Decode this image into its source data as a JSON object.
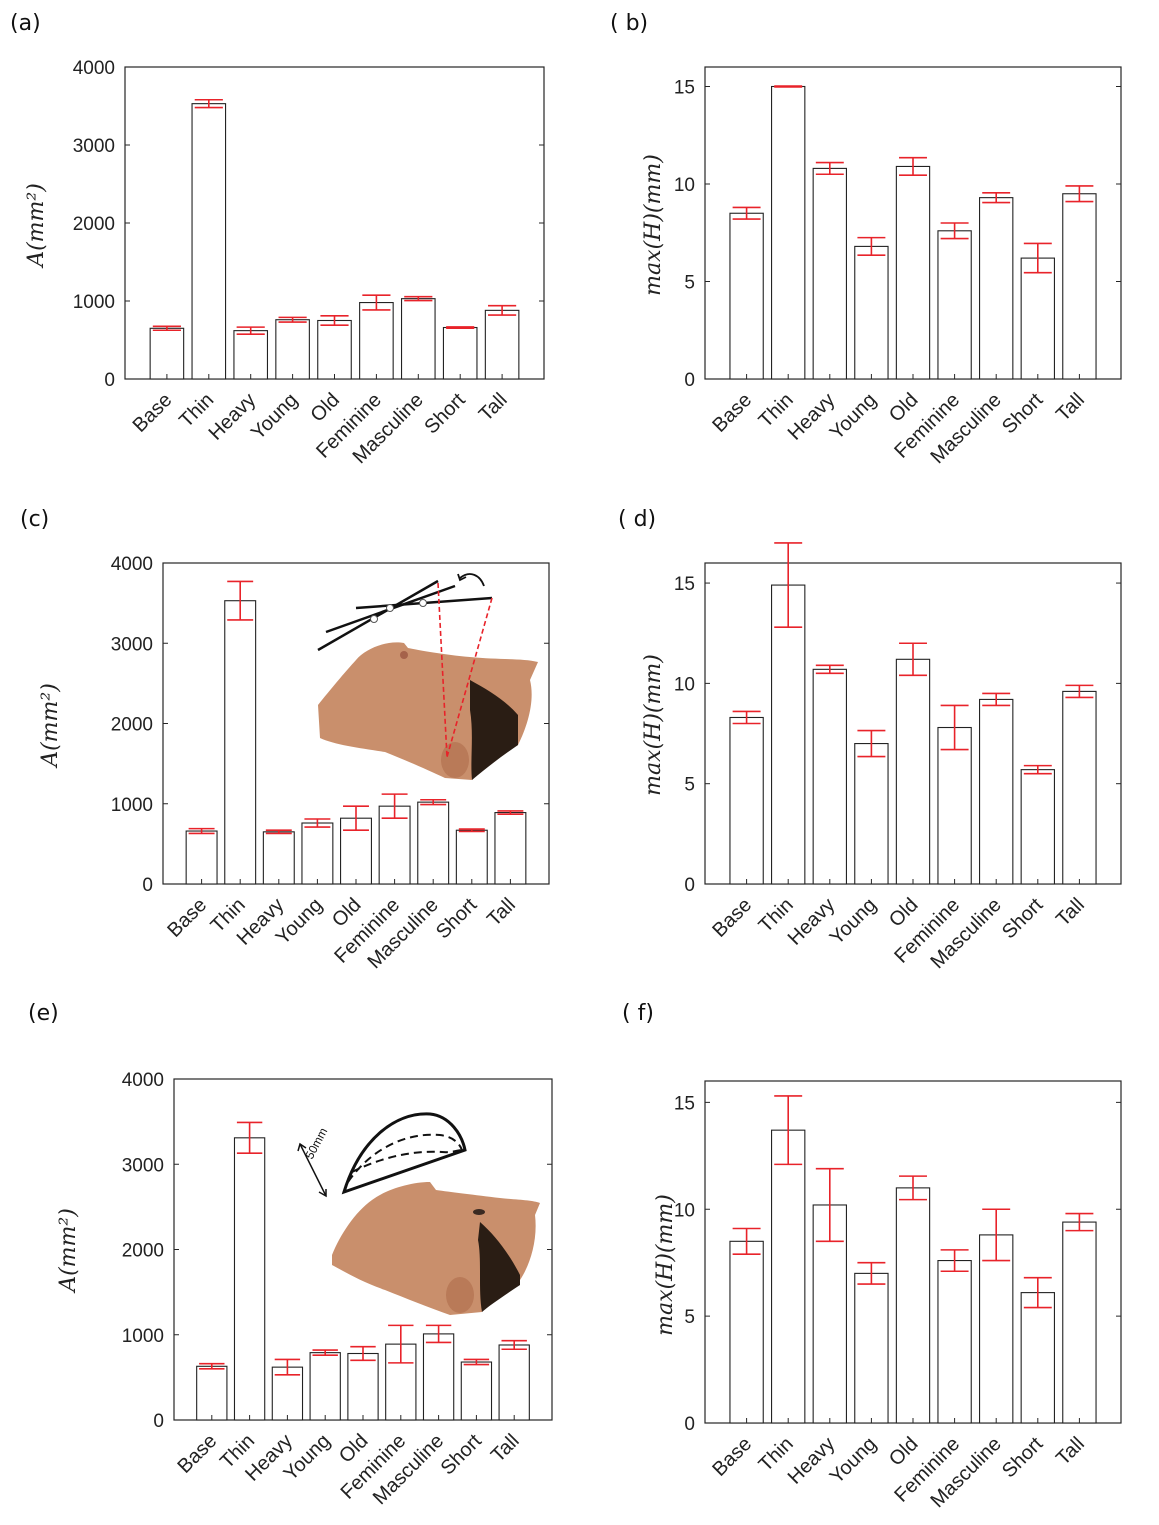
{
  "categories": [
    "Base",
    "Thin",
    "Heavy",
    "Young",
    "Old",
    "Feminine",
    "Masculine",
    "Short",
    "Tall"
  ],
  "chart_data": [
    {
      "id": "a",
      "panel_label": "(a)",
      "type": "bar",
      "ylabel": "A(mm²)",
      "ylim": [
        0,
        4000
      ],
      "yticks": [
        0,
        1000,
        2000,
        3000,
        4000
      ],
      "values": [
        650,
        3530,
        620,
        760,
        750,
        980,
        1030,
        660,
        880
      ],
      "errors": [
        25,
        50,
        45,
        30,
        60,
        95,
        25,
        8,
        60
      ],
      "bar_color": "#ffffff",
      "error_color": "#e8232a"
    },
    {
      "id": "b",
      "panel_label": "( b)",
      "type": "bar",
      "ylabel": "max(H)(mm)",
      "ylim": [
        0,
        16
      ],
      "yticks": [
        0,
        5,
        10,
        15
      ],
      "values": [
        8.5,
        15.0,
        10.8,
        6.8,
        10.9,
        7.6,
        9.3,
        6.2,
        9.5
      ],
      "errors": [
        0.3,
        0.02,
        0.3,
        0.45,
        0.45,
        0.4,
        0.25,
        0.75,
        0.4
      ],
      "bar_color": "#ffffff",
      "error_color": "#e8232a"
    },
    {
      "id": "c",
      "panel_label": "(c)",
      "type": "bar",
      "ylabel": "A(mm²)",
      "ylim": [
        0,
        4000
      ],
      "yticks": [
        0,
        1000,
        2000,
        3000,
        4000
      ],
      "values": [
        660,
        3530,
        650,
        760,
        820,
        970,
        1020,
        670,
        890
      ],
      "errors": [
        30,
        240,
        20,
        50,
        150,
        150,
        30,
        15,
        20
      ],
      "bar_color": "#ffffff",
      "error_color": "#e8232a"
    },
    {
      "id": "d",
      "panel_label": "( d)",
      "type": "bar",
      "ylabel": "max(H)(mm)",
      "ylim": [
        0,
        16
      ],
      "yticks": [
        0,
        5,
        10,
        15
      ],
      "values": [
        8.3,
        14.9,
        10.7,
        7.0,
        11.2,
        7.8,
        9.2,
        5.7,
        9.6
      ],
      "errors": [
        0.3,
        2.1,
        0.2,
        0.65,
        0.8,
        1.1,
        0.3,
        0.2,
        0.3
      ],
      "bar_color": "#ffffff",
      "error_color": "#e8232a"
    },
    {
      "id": "e",
      "panel_label": "(e)",
      "type": "bar",
      "ylabel": "A(mm²)",
      "ylim": [
        0,
        4000
      ],
      "yticks": [
        0,
        1000,
        2000,
        3000,
        4000
      ],
      "values": [
        630,
        3310,
        620,
        790,
        780,
        890,
        1010,
        680,
        880
      ],
      "errors": [
        30,
        180,
        90,
        30,
        80,
        220,
        100,
        30,
        50
      ],
      "bar_color": "#ffffff",
      "error_color": "#e8232a"
    },
    {
      "id": "f",
      "panel_label": "( f)",
      "type": "bar",
      "ylabel": "max(H)(mm)",
      "ylim": [
        0,
        16
      ],
      "yticks": [
        0,
        5,
        10,
        15
      ],
      "values": [
        8.5,
        13.7,
        10.2,
        7.0,
        11.0,
        7.6,
        8.8,
        6.1,
        9.4
      ],
      "errors": [
        0.6,
        1.6,
        1.7,
        0.5,
        0.55,
        0.5,
        1.2,
        0.7,
        0.4
      ],
      "bar_color": "#ffffff",
      "error_color": "#e8232a"
    }
  ],
  "insets": {
    "c": {
      "icon": "face-profile-with-angle-lines",
      "skin_color": "#c98f6c"
    },
    "e": {
      "icon": "face-profile-with-curves",
      "annotation": "50mm",
      "skin_color": "#c98f6c"
    }
  }
}
